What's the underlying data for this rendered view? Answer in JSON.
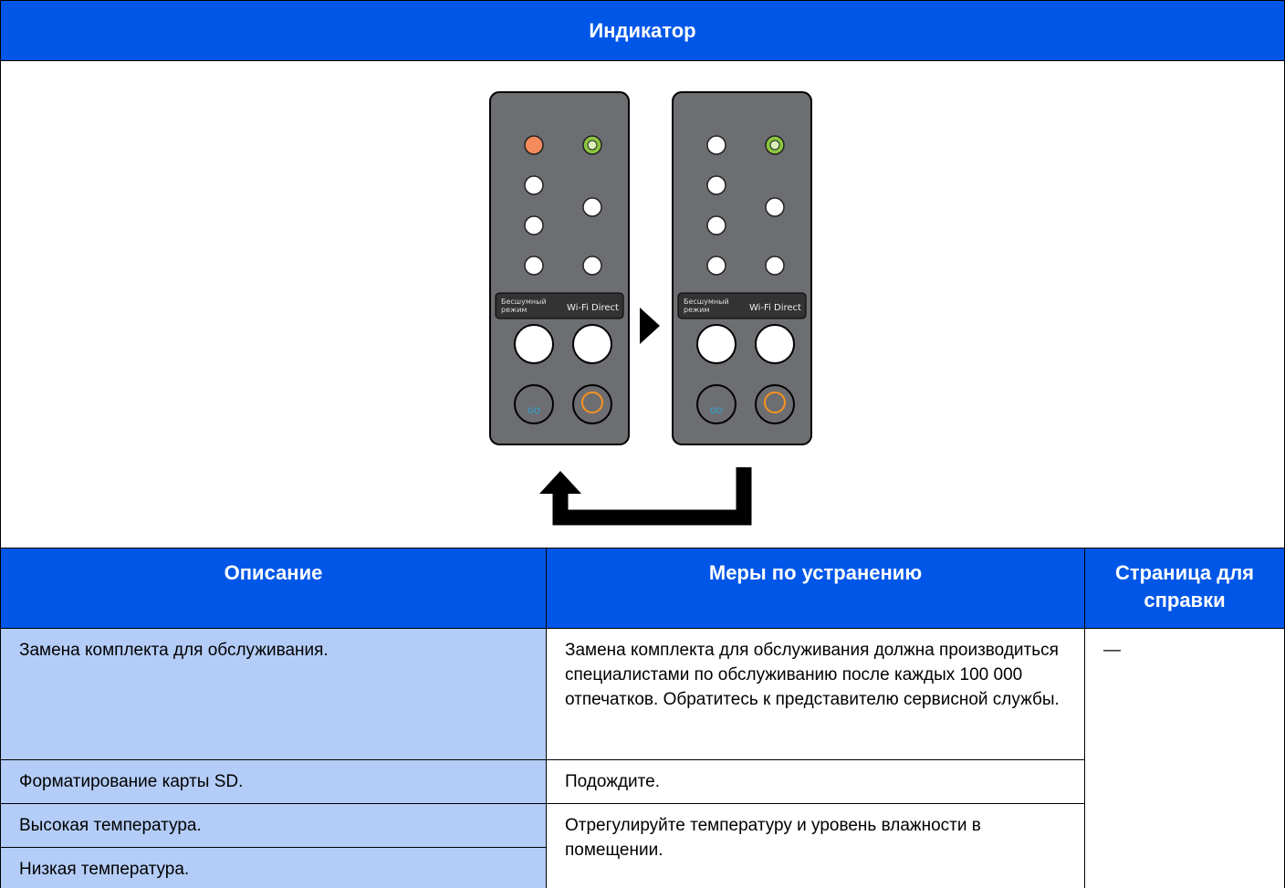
{
  "header": {
    "title": "Индикатор"
  },
  "panel": {
    "labels": [
      "Бесшумный",
      "режим",
      "Wi-Fi Direct"
    ],
    "go": "GO"
  },
  "table": {
    "columns": [
      "Описание",
      "Меры по устранению",
      "Страница для справки"
    ],
    "rows": [
      [
        "Замена комплекта для обслуживания.",
        "Замена комплекта для обслуживания должна производиться специалистами по обслуживанию после каждых 100 000 отпечатков. Обратитесь к представителю сервисной службы.",
        "—"
      ],
      [
        "Форматирование карты SD.",
        "Подождите."
      ],
      [
        "Высокая температура.",
        "Отрегулируйте температуру и уровень влажности в помещении."
      ],
      [
        "Низкая температура."
      ]
    ]
  }
}
